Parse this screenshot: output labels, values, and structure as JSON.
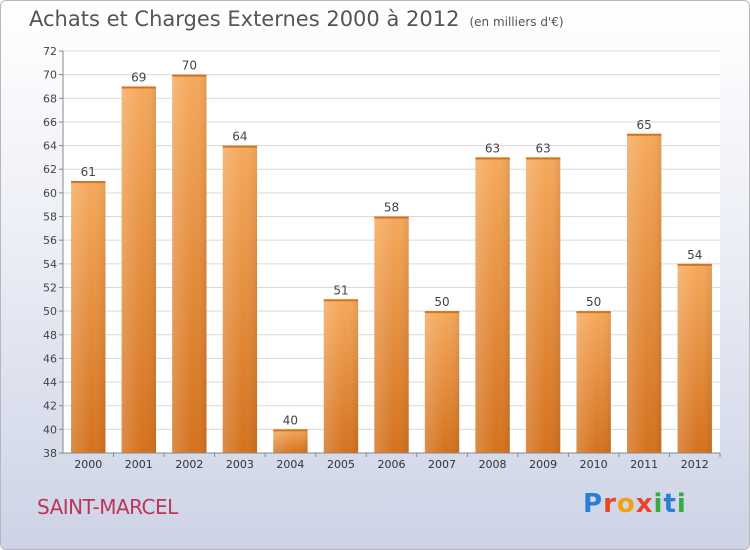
{
  "title": "Achats et Charges Externes 2000 à 2012",
  "unit_label": "(en milliers d'€)",
  "place": "SAINT-MARCEL",
  "logo": {
    "text": "Proxiti",
    "letter_colors": [
      "#2a7fd4",
      "#e8462b",
      "#f0a10f",
      "#e8462b",
      "#3aa845",
      "#2a7fd4",
      "#3aa845"
    ]
  },
  "chart_data": {
    "type": "bar",
    "title": "Achats et Charges Externes 2000 à 2012",
    "subtitle": "(en milliers d'€)",
    "categories": [
      "2000",
      "2001",
      "2002",
      "2003",
      "2004",
      "2005",
      "2006",
      "2007",
      "2008",
      "2009",
      "2010",
      "2011",
      "2012"
    ],
    "values": [
      61,
      69,
      70,
      64,
      40,
      51,
      58,
      50,
      63,
      63,
      50,
      65,
      54
    ],
    "ylim": [
      38,
      72
    ],
    "yticks": [
      38,
      40,
      42,
      44,
      46,
      48,
      50,
      52,
      54,
      56,
      58,
      60,
      62,
      64,
      66,
      68,
      70,
      72
    ],
    "grid": true,
    "bar_color": "#f0923a",
    "bar_color_light": "#f5a95c",
    "bar_color_dark": "#d4721e"
  }
}
